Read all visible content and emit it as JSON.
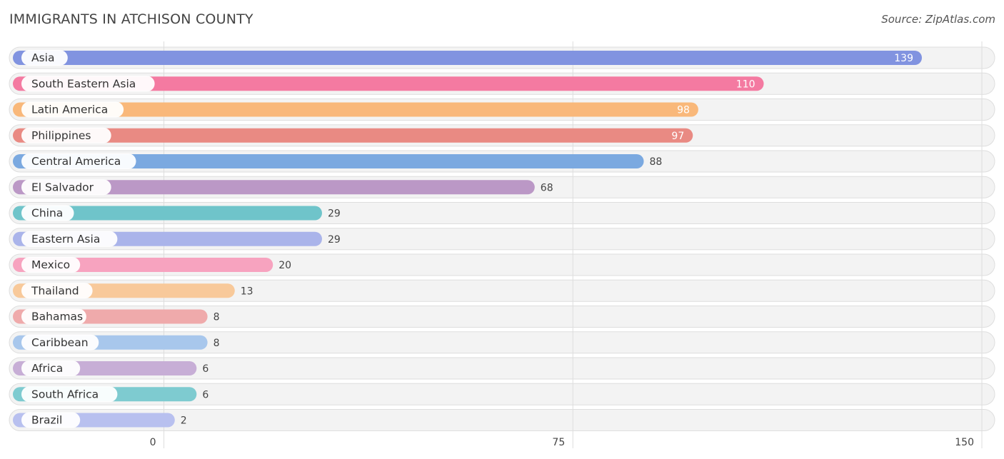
{
  "title": "IMMIGRANTS IN ATCHISON COUNTY",
  "source": "Source: ZipAtlas.com",
  "chart_data": {
    "type": "bar",
    "orientation": "horizontal",
    "title": "IMMIGRANTS IN ATCHISON COUNTY",
    "xlabel": "",
    "ylabel": "",
    "xlim": [
      0,
      150
    ],
    "x_ticks": [
      "0",
      "75",
      "150"
    ],
    "grid": true,
    "legend": "none",
    "categories": [
      "Asia",
      "South Eastern Asia",
      "Latin America",
      "Philippines",
      "Central America",
      "El Salvador",
      "China",
      "Eastern Asia",
      "Mexico",
      "Thailand",
      "Bahamas",
      "Caribbean",
      "Africa",
      "South Africa",
      "Brazil"
    ],
    "values": [
      139,
      110,
      98,
      97,
      88,
      68,
      29,
      29,
      20,
      13,
      8,
      8,
      6,
      6,
      2
    ],
    "value_labels": [
      "139",
      "110",
      "98",
      "97",
      "88",
      "68",
      "29",
      "29",
      "20",
      "13",
      "8",
      "8",
      "6",
      "6",
      "2"
    ],
    "colors": [
      "#8193e0",
      "#f47aa1",
      "#f9b87a",
      "#e98a83",
      "#7ba9e0",
      "#bb98c6",
      "#6fc4ca",
      "#aab4ea",
      "#f7a3bf",
      "#f8c99a",
      "#efaaab",
      "#a8c7ec",
      "#c7aed6",
      "#7ecbd0",
      "#b8c0ef"
    ]
  }
}
